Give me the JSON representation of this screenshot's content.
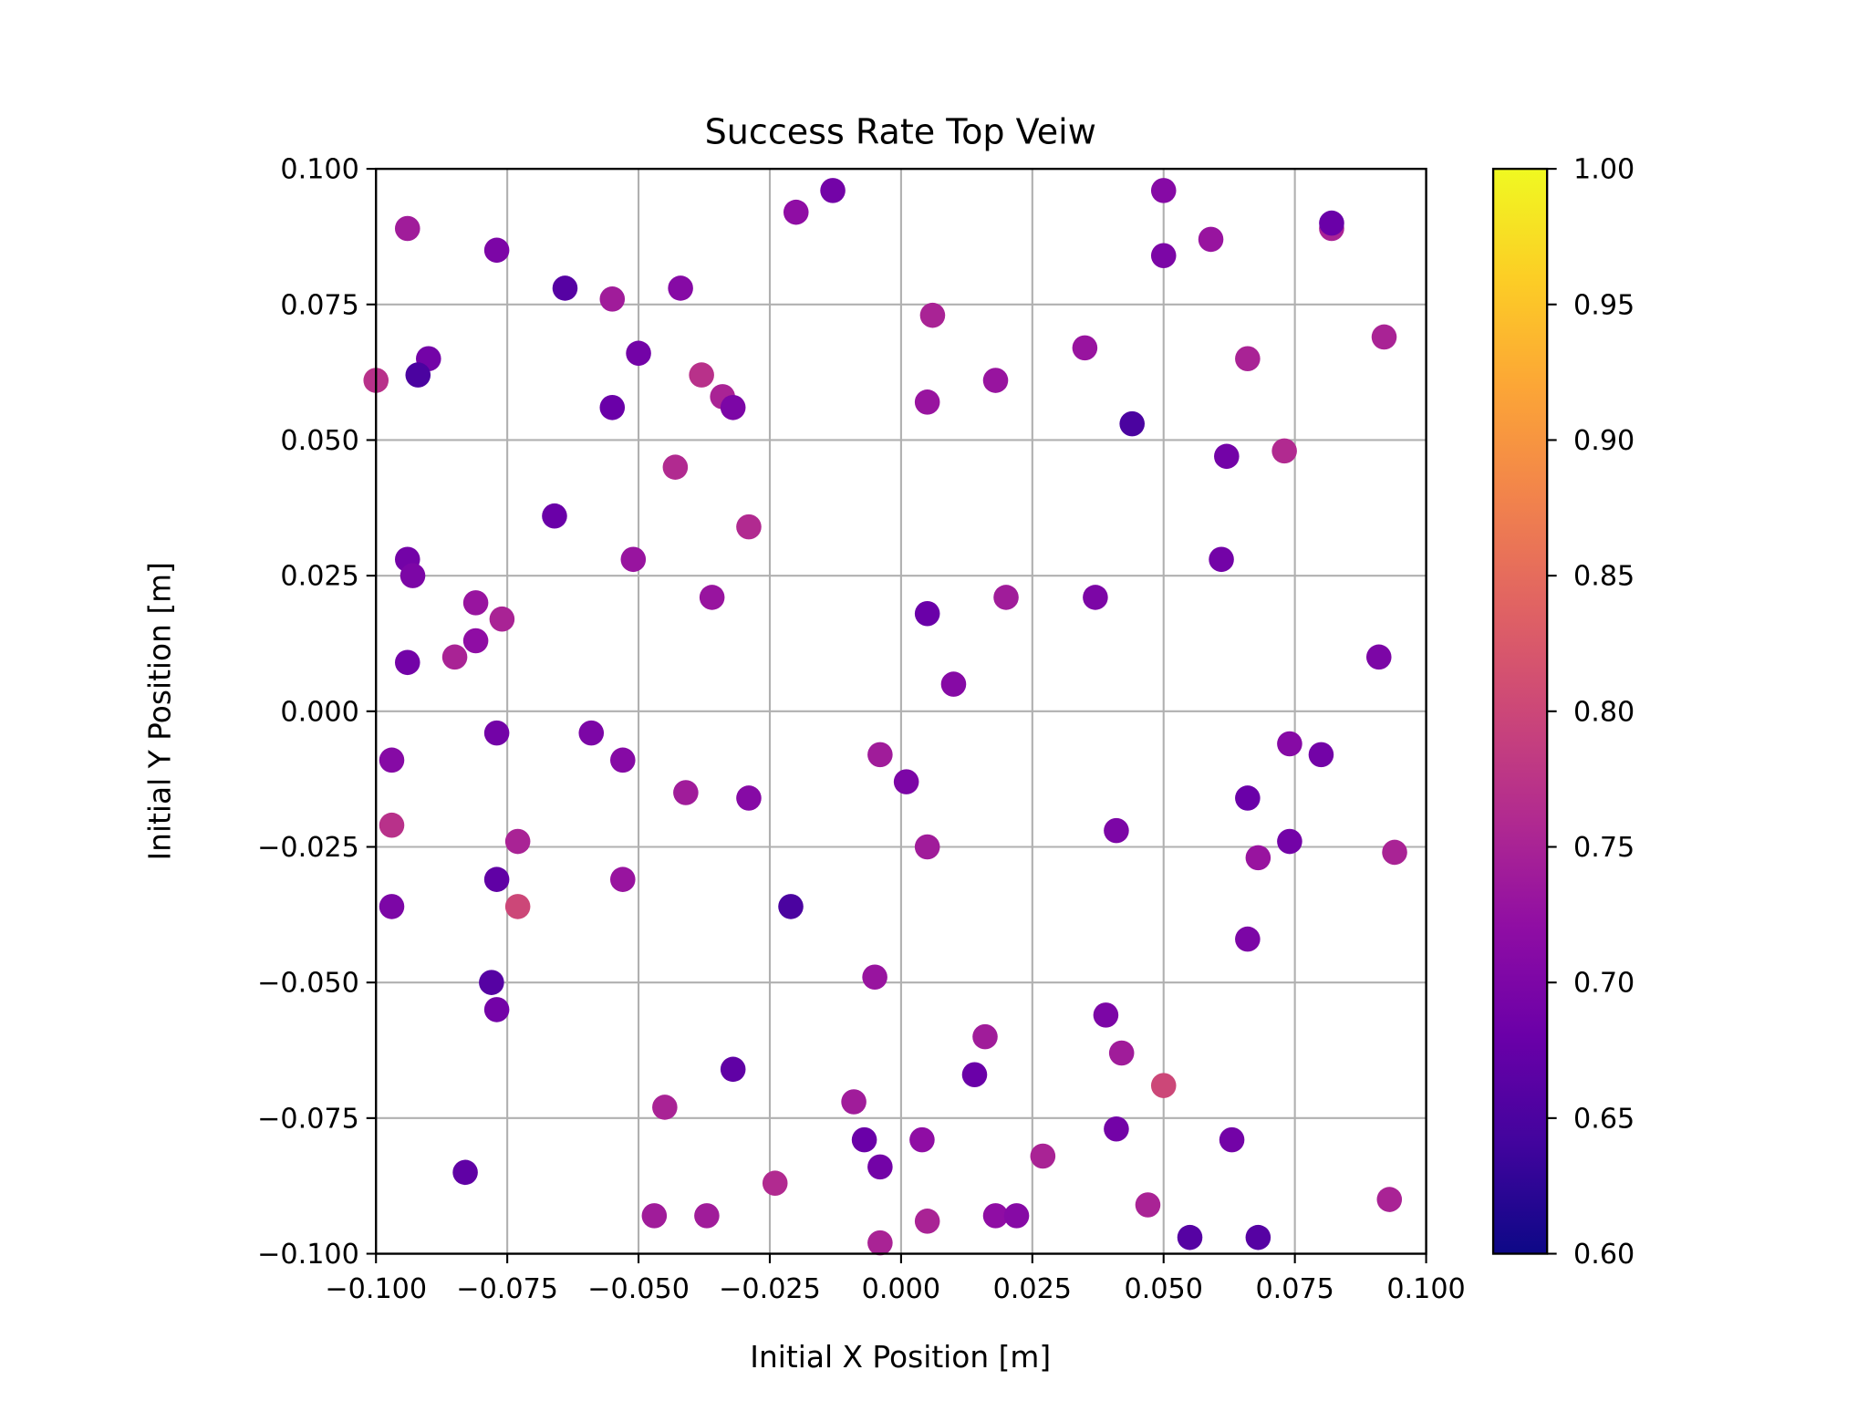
{
  "chart_data": {
    "type": "scatter",
    "title": "Success Rate Top Veiw",
    "xlabel": "Initial X Position [m]",
    "ylabel": "Initial Y Position [m]",
    "xlim": [
      -0.1,
      0.1
    ],
    "ylim": [
      -0.1,
      0.1
    ],
    "grid": true,
    "xticks": [
      "−0.100",
      "−0.075",
      "−0.050",
      "−0.025",
      "0.000",
      "0.025",
      "0.050",
      "0.075",
      "0.100"
    ],
    "yticks": [
      "−0.100",
      "−0.075",
      "−0.050",
      "−0.025",
      "0.000",
      "0.025",
      "0.050",
      "0.075",
      "0.100"
    ],
    "colorbar": {
      "colormap": "plasma",
      "range": [
        0.6,
        1.0
      ],
      "ticks": [
        "0.60",
        "0.65",
        "0.70",
        "0.75",
        "0.80",
        "0.85",
        "0.90",
        "0.95",
        "1.00"
      ],
      "placement": "right"
    },
    "points": [
      [
        -0.094,
        0.089,
        0.74
      ],
      [
        -0.077,
        0.085,
        0.7
      ],
      [
        -0.064,
        0.078,
        0.66
      ],
      [
        -0.055,
        0.076,
        0.74
      ],
      [
        -0.042,
        0.078,
        0.71
      ],
      [
        -0.02,
        0.092,
        0.72
      ],
      [
        -0.013,
        0.096,
        0.69
      ],
      [
        0.05,
        0.096,
        0.71
      ],
      [
        0.05,
        0.084,
        0.7
      ],
      [
        0.059,
        0.087,
        0.73
      ],
      [
        0.082,
        0.089,
        0.75
      ],
      [
        0.082,
        0.09,
        0.68
      ],
      [
        -0.1,
        0.061,
        0.77
      ],
      [
        -0.09,
        0.065,
        0.69
      ],
      [
        -0.092,
        0.062,
        0.65
      ],
      [
        -0.05,
        0.066,
        0.69
      ],
      [
        -0.038,
        0.062,
        0.77
      ],
      [
        -0.034,
        0.058,
        0.75
      ],
      [
        -0.032,
        0.056,
        0.7
      ],
      [
        -0.055,
        0.056,
        0.68
      ],
      [
        0.006,
        0.073,
        0.75
      ],
      [
        0.005,
        0.057,
        0.73
      ],
      [
        0.018,
        0.061,
        0.73
      ],
      [
        0.035,
        0.067,
        0.73
      ],
      [
        0.044,
        0.053,
        0.65
      ],
      [
        0.066,
        0.065,
        0.75
      ],
      [
        0.062,
        0.047,
        0.69
      ],
      [
        0.073,
        0.048,
        0.76
      ],
      [
        0.092,
        0.069,
        0.75
      ],
      [
        -0.043,
        0.045,
        0.76
      ],
      [
        -0.066,
        0.036,
        0.68
      ],
      [
        -0.029,
        0.034,
        0.76
      ],
      [
        -0.094,
        0.028,
        0.69
      ],
      [
        -0.093,
        0.025,
        0.7
      ],
      [
        -0.051,
        0.028,
        0.73
      ],
      [
        -0.036,
        0.021,
        0.73
      ],
      [
        -0.081,
        0.02,
        0.73
      ],
      [
        -0.076,
        0.017,
        0.75
      ],
      [
        -0.081,
        0.013,
        0.72
      ],
      [
        -0.085,
        0.01,
        0.75
      ],
      [
        -0.094,
        0.009,
        0.69
      ],
      [
        0.005,
        0.018,
        0.68
      ],
      [
        0.02,
        0.021,
        0.74
      ],
      [
        0.037,
        0.021,
        0.7
      ],
      [
        0.061,
        0.028,
        0.69
      ],
      [
        0.01,
        0.005,
        0.71
      ],
      [
        0.091,
        0.01,
        0.7
      ],
      [
        -0.077,
        -0.004,
        0.69
      ],
      [
        -0.059,
        -0.004,
        0.7
      ],
      [
        -0.053,
        -0.009,
        0.71
      ],
      [
        -0.097,
        -0.009,
        0.71
      ],
      [
        -0.041,
        -0.015,
        0.74
      ],
      [
        -0.029,
        -0.016,
        0.71
      ],
      [
        -0.004,
        -0.008,
        0.74
      ],
      [
        0.001,
        -0.013,
        0.7
      ],
      [
        0.005,
        -0.025,
        0.74
      ],
      [
        -0.097,
        -0.021,
        0.77
      ],
      [
        -0.073,
        -0.024,
        0.75
      ],
      [
        -0.077,
        -0.031,
        0.67
      ],
      [
        -0.053,
        -0.031,
        0.73
      ],
      [
        -0.097,
        -0.036,
        0.7
      ],
      [
        -0.073,
        -0.036,
        0.8
      ],
      [
        -0.021,
        -0.036,
        0.65
      ],
      [
        0.041,
        -0.022,
        0.7
      ],
      [
        0.066,
        -0.016,
        0.68
      ],
      [
        0.074,
        -0.006,
        0.71
      ],
      [
        0.08,
        -0.008,
        0.69
      ],
      [
        0.074,
        -0.024,
        0.69
      ],
      [
        0.068,
        -0.027,
        0.73
      ],
      [
        0.094,
        -0.026,
        0.75
      ],
      [
        0.066,
        -0.042,
        0.7
      ],
      [
        -0.078,
        -0.05,
        0.66
      ],
      [
        -0.077,
        -0.055,
        0.69
      ],
      [
        -0.005,
        -0.049,
        0.73
      ],
      [
        0.016,
        -0.06,
        0.74
      ],
      [
        0.039,
        -0.056,
        0.7
      ],
      [
        0.042,
        -0.063,
        0.74
      ],
      [
        -0.032,
        -0.066,
        0.67
      ],
      [
        0.014,
        -0.067,
        0.68
      ],
      [
        0.05,
        -0.069,
        0.8
      ],
      [
        -0.045,
        -0.073,
        0.75
      ],
      [
        -0.009,
        -0.072,
        0.74
      ],
      [
        -0.007,
        -0.079,
        0.68
      ],
      [
        -0.004,
        -0.084,
        0.69
      ],
      [
        0.004,
        -0.079,
        0.72
      ],
      [
        0.027,
        -0.082,
        0.75
      ],
      [
        0.041,
        -0.077,
        0.69
      ],
      [
        0.063,
        -0.079,
        0.69
      ],
      [
        -0.083,
        -0.085,
        0.67
      ],
      [
        -0.024,
        -0.087,
        0.76
      ],
      [
        -0.047,
        -0.093,
        0.74
      ],
      [
        -0.037,
        -0.093,
        0.74
      ],
      [
        -0.004,
        -0.098,
        0.75
      ],
      [
        0.005,
        -0.094,
        0.75
      ],
      [
        0.018,
        -0.093,
        0.72
      ],
      [
        0.022,
        -0.093,
        0.71
      ],
      [
        0.047,
        -0.091,
        0.75
      ],
      [
        0.055,
        -0.097,
        0.66
      ],
      [
        0.068,
        -0.097,
        0.66
      ],
      [
        0.093,
        -0.09,
        0.75
      ]
    ]
  }
}
